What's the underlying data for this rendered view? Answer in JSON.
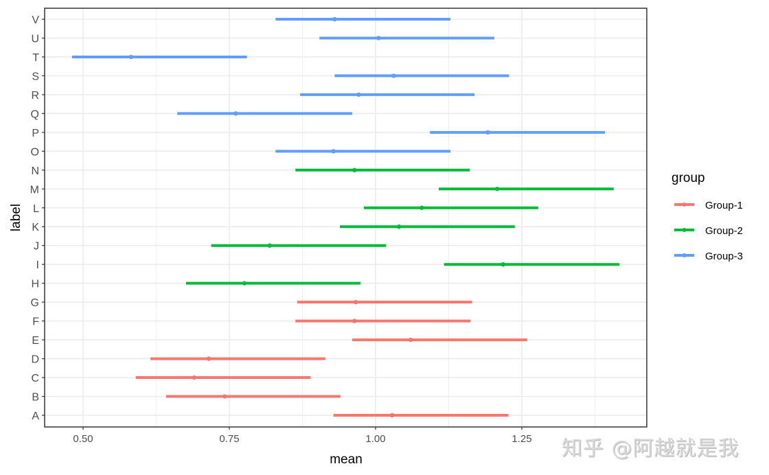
{
  "chart_data": {
    "type": "errorbar",
    "title": "",
    "xlabel": "mean",
    "ylabel": "label",
    "xlim": [
      0.44,
      1.47
    ],
    "xticks": [
      0.5,
      0.75,
      1.0,
      1.25
    ],
    "xtick_labels": [
      "0.50",
      "0.75",
      "1.00",
      "1.25"
    ],
    "grid": true,
    "legend": {
      "title": "group",
      "position": "right",
      "entries": [
        {
          "name": "Group-1",
          "color": "#F8766D"
        },
        {
          "name": "Group-2",
          "color": "#00BA38"
        },
        {
          "name": "Group-3",
          "color": "#619CFF"
        }
      ]
    },
    "categories": [
      "A",
      "B",
      "C",
      "D",
      "E",
      "F",
      "G",
      "H",
      "I",
      "J",
      "K",
      "L",
      "M",
      "N",
      "O",
      "P",
      "Q",
      "R",
      "S",
      "T",
      "U",
      "V"
    ],
    "series": [
      {
        "name": "Group-1",
        "color": "#F8766D",
        "points": [
          {
            "label": "A",
            "mean": 1.028,
            "lower": 0.928,
            "upper": 1.227
          },
          {
            "label": "B",
            "mean": 0.742,
            "lower": 0.642,
            "upper": 0.94
          },
          {
            "label": "C",
            "mean": 0.69,
            "lower": 0.59,
            "upper": 0.889
          },
          {
            "label": "D",
            "mean": 0.715,
            "lower": 0.615,
            "upper": 0.914
          },
          {
            "label": "E",
            "mean": 1.06,
            "lower": 0.96,
            "upper": 1.259
          },
          {
            "label": "F",
            "mean": 0.964,
            "lower": 0.863,
            "upper": 1.162
          },
          {
            "label": "G",
            "mean": 0.966,
            "lower": 0.866,
            "upper": 1.165
          }
        ]
      },
      {
        "name": "Group-2",
        "color": "#00BA38",
        "points": [
          {
            "label": "H",
            "mean": 0.776,
            "lower": 0.676,
            "upper": 0.974
          },
          {
            "label": "I",
            "mean": 1.218,
            "lower": 1.117,
            "upper": 1.417
          },
          {
            "label": "J",
            "mean": 0.819,
            "lower": 0.719,
            "upper": 1.018
          },
          {
            "label": "K",
            "mean": 1.04,
            "lower": 0.939,
            "upper": 1.238
          },
          {
            "label": "L",
            "mean": 1.079,
            "lower": 0.98,
            "upper": 1.278
          },
          {
            "label": "M",
            "mean": 1.208,
            "lower": 1.108,
            "upper": 1.407
          },
          {
            "label": "N",
            "mean": 0.964,
            "lower": 0.863,
            "upper": 1.161
          }
        ]
      },
      {
        "name": "Group-3",
        "color": "#619CFF",
        "points": [
          {
            "label": "O",
            "mean": 0.928,
            "lower": 0.829,
            "upper": 1.128
          },
          {
            "label": "P",
            "mean": 1.192,
            "lower": 1.093,
            "upper": 1.392
          },
          {
            "label": "Q",
            "mean": 0.761,
            "lower": 0.661,
            "upper": 0.96
          },
          {
            "label": "R",
            "mean": 0.971,
            "lower": 0.871,
            "upper": 1.169
          },
          {
            "label": "S",
            "mean": 1.031,
            "lower": 0.93,
            "upper": 1.228
          },
          {
            "label": "T",
            "mean": 0.582,
            "lower": 0.481,
            "upper": 0.78
          },
          {
            "label": "U",
            "mean": 1.005,
            "lower": 0.904,
            "upper": 1.203
          },
          {
            "label": "V",
            "mean": 0.93,
            "lower": 0.829,
            "upper": 1.128
          }
        ]
      }
    ]
  },
  "watermark": "知乎 @阿越就是我"
}
